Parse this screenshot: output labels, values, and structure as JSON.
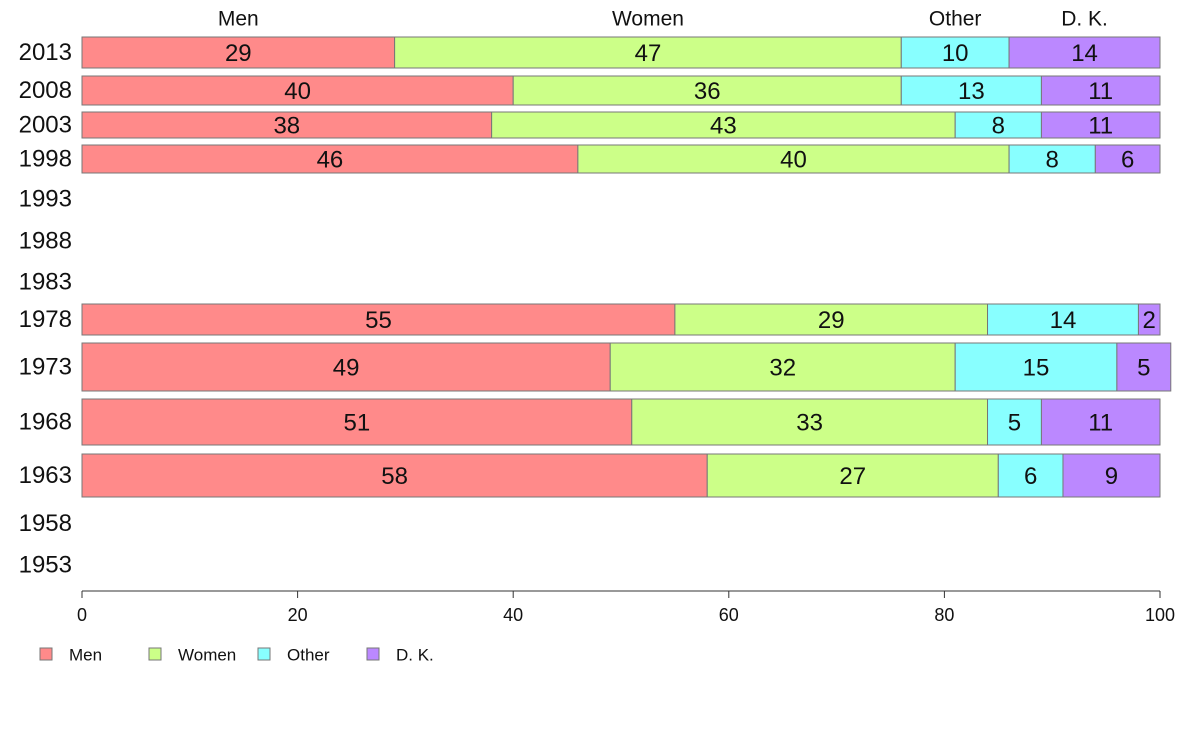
{
  "chart_data": {
    "type": "bar",
    "orientation": "horizontal",
    "stacked": true,
    "series": [
      {
        "name": "Men",
        "color": "#FF8A8A"
      },
      {
        "name": "Women",
        "color": "#CCFF88"
      },
      {
        "name": "Other",
        "color": "#88FFFF"
      },
      {
        "name": "D. K.",
        "color": "#BB88FF"
      }
    ],
    "rows": [
      {
        "year": "2013",
        "values": [
          29,
          47,
          10,
          14
        ]
      },
      {
        "year": "2008",
        "values": [
          40,
          36,
          13,
          11
        ]
      },
      {
        "year": "2003",
        "values": [
          38,
          43,
          8,
          11
        ]
      },
      {
        "year": "1998",
        "values": [
          46,
          40,
          8,
          6
        ]
      },
      {
        "year": "1993",
        "values": null
      },
      {
        "year": "1988",
        "values": null
      },
      {
        "year": "1983",
        "values": null
      },
      {
        "year": "1978",
        "values": [
          55,
          29,
          14,
          2
        ]
      },
      {
        "year": "1973",
        "values": [
          49,
          32,
          15,
          5
        ]
      },
      {
        "year": "1968",
        "values": [
          51,
          33,
          5,
          11
        ]
      },
      {
        "year": "1963",
        "values": [
          58,
          27,
          6,
          9
        ]
      },
      {
        "year": "1958",
        "values": null
      },
      {
        "year": "1953",
        "values": null
      }
    ],
    "xlim": [
      0,
      100
    ],
    "xticks": [
      "0",
      "20",
      "40",
      "60",
      "80",
      "100"
    ],
    "column_headers": [
      "Men",
      "Women",
      "Other",
      "D. K."
    ],
    "legend": {
      "placement": "bottom-left",
      "entries": [
        "Men",
        "Women",
        "Other",
        "D. K."
      ]
    },
    "grid": false
  }
}
